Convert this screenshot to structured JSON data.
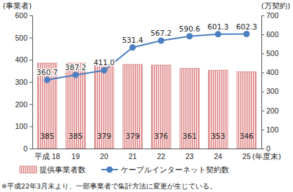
{
  "chart_data": {
    "type": "bar",
    "categories": [
      "平成 18",
      "19",
      "20",
      "21",
      "22",
      "23",
      "24",
      "25"
    ],
    "x_label": "(年度末)",
    "y_label": "(事業者)",
    "y2_label": "(万契約)",
    "note": "※平成22年3月末より、一部事業者で集計方法に変更が生じている。",
    "ylim": [
      0,
      600
    ],
    "yticks": [
      0,
      100,
      200,
      300,
      400,
      500,
      600
    ],
    "y2lim": [
      0,
      700
    ],
    "y2ticks": [
      0,
      100,
      200,
      300,
      400,
      500,
      600,
      700
    ],
    "grid": false,
    "legend": "bottom",
    "data_labels": true,
    "series": [
      {
        "name": "提供事業者数",
        "type": "bar",
        "color": "#d98080",
        "values": [
          385,
          385,
          379,
          379,
          376,
          361,
          353,
          346
        ]
      },
      {
        "name": "ケーブルインターネット契約数",
        "type": "line",
        "axis": "y2",
        "color": "#4a7fc1",
        "marker": "circle",
        "values": [
          360.7,
          387.2,
          411.0,
          531.4,
          567.2,
          590.6,
          601.3,
          602.3
        ],
        "value_labels": [
          "360.7",
          "387.2",
          "411.0",
          "531.4",
          "567.2",
          "590.6",
          "601.3",
          "602.3"
        ]
      }
    ]
  }
}
